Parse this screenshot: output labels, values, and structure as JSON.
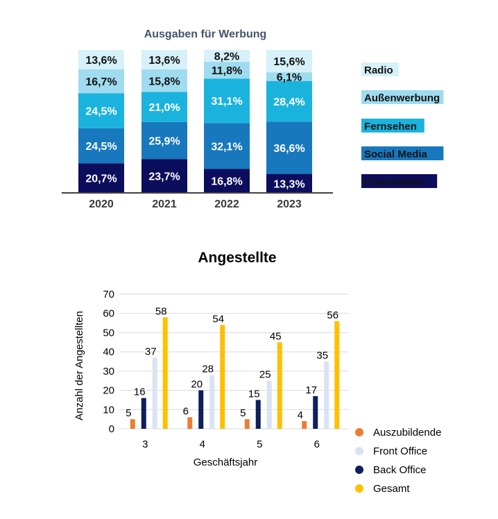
{
  "chart_data": [
    {
      "type": "bar",
      "stacked": true,
      "percent": true,
      "title": "Ausgaben für Werbung",
      "categories": [
        "2020",
        "2021",
        "2022",
        "2023"
      ],
      "series": [
        {
          "name": "Printmedien",
          "values": [
            20.7,
            23.7,
            16.8,
            13.3
          ],
          "labels": [
            "20,7%",
            "23,7%",
            "16,8%",
            "13,3%"
          ],
          "color": "#0d0d5e",
          "label_color": "#ffffff"
        },
        {
          "name": "Social Media",
          "values": [
            24.5,
            25.9,
            32.1,
            36.6
          ],
          "labels": [
            "24,5%",
            "25,9%",
            "32,1%",
            "36,6%"
          ],
          "color": "#1778bd",
          "label_color": "#ffffff"
        },
        {
          "name": "Fernsehen",
          "values": [
            24.5,
            21.0,
            31.1,
            28.4
          ],
          "labels": [
            "24,5%",
            "21,0%",
            "31,1%",
            "28,4%"
          ],
          "color": "#1ab3dd",
          "label_color": "#ffffff"
        },
        {
          "name": "Außenwerbung",
          "values": [
            16.7,
            15.8,
            11.8,
            6.1
          ],
          "labels": [
            "16,7%",
            "15,8%",
            "11,8%",
            "6,1%"
          ],
          "color": "#9fdcef",
          "label_color": "#111111"
        },
        {
          "name": "Radio",
          "values": [
            13.6,
            13.6,
            8.2,
            15.6
          ],
          "labels": [
            "13,6%",
            "13,6%",
            "8,2%",
            "15,6%"
          ],
          "color": "#d6f1f9",
          "label_color": "#111111"
        }
      ],
      "legend": {
        "position": "right",
        "order": [
          "Radio",
          "Außenwerbung",
          "Fernsehen",
          "Social Media",
          "Printmedien"
        ]
      },
      "grid": false
    },
    {
      "type": "bar",
      "title": "Angestellte",
      "xlabel": "Geschäftsjahr",
      "ylabel": "Anzahl der Angestellten",
      "categories": [
        "3",
        "4",
        "5",
        "6"
      ],
      "ylim": [
        0,
        70
      ],
      "yticks": [
        0,
        10,
        20,
        30,
        40,
        50,
        60,
        70
      ],
      "series": [
        {
          "name": "Auszubildende",
          "values": [
            5,
            6,
            5,
            4
          ],
          "color": "#ed7d31"
        },
        {
          "name": "Front Office",
          "values": [
            37,
            28,
            25,
            35
          ],
          "color": "#dae3f3"
        },
        {
          "name": "Back Office",
          "values": [
            16,
            20,
            15,
            17
          ],
          "color": "#0d1f5c"
        },
        {
          "name": "Gesamt",
          "values": [
            58,
            54,
            45,
            56
          ],
          "color": "#ffc000"
        }
      ],
      "grid": true,
      "legend": {
        "position": "bottom-right"
      }
    }
  ]
}
